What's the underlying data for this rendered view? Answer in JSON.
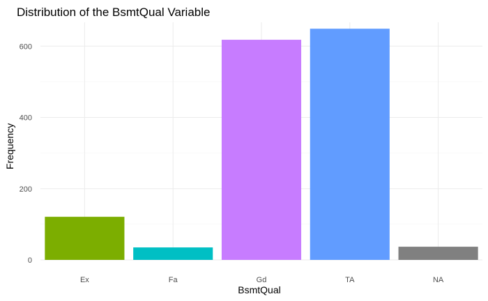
{
  "chart_data": {
    "type": "bar",
    "title": "Distribution of the BsmtQual Variable",
    "xlabel": "BsmtQual",
    "ylabel": "Frequency",
    "categories": [
      "Ex",
      "Fa",
      "Gd",
      "TA",
      "NA"
    ],
    "values": [
      121,
      35,
      618,
      649,
      37
    ],
    "colors": [
      "#7CAE00",
      "#00BFC4",
      "#C77CFF",
      "#619CFF",
      "#808080"
    ],
    "ylim": [
      0,
      667
    ],
    "yticks": [
      0,
      200,
      400,
      600
    ],
    "grid": true,
    "legend": "none"
  }
}
